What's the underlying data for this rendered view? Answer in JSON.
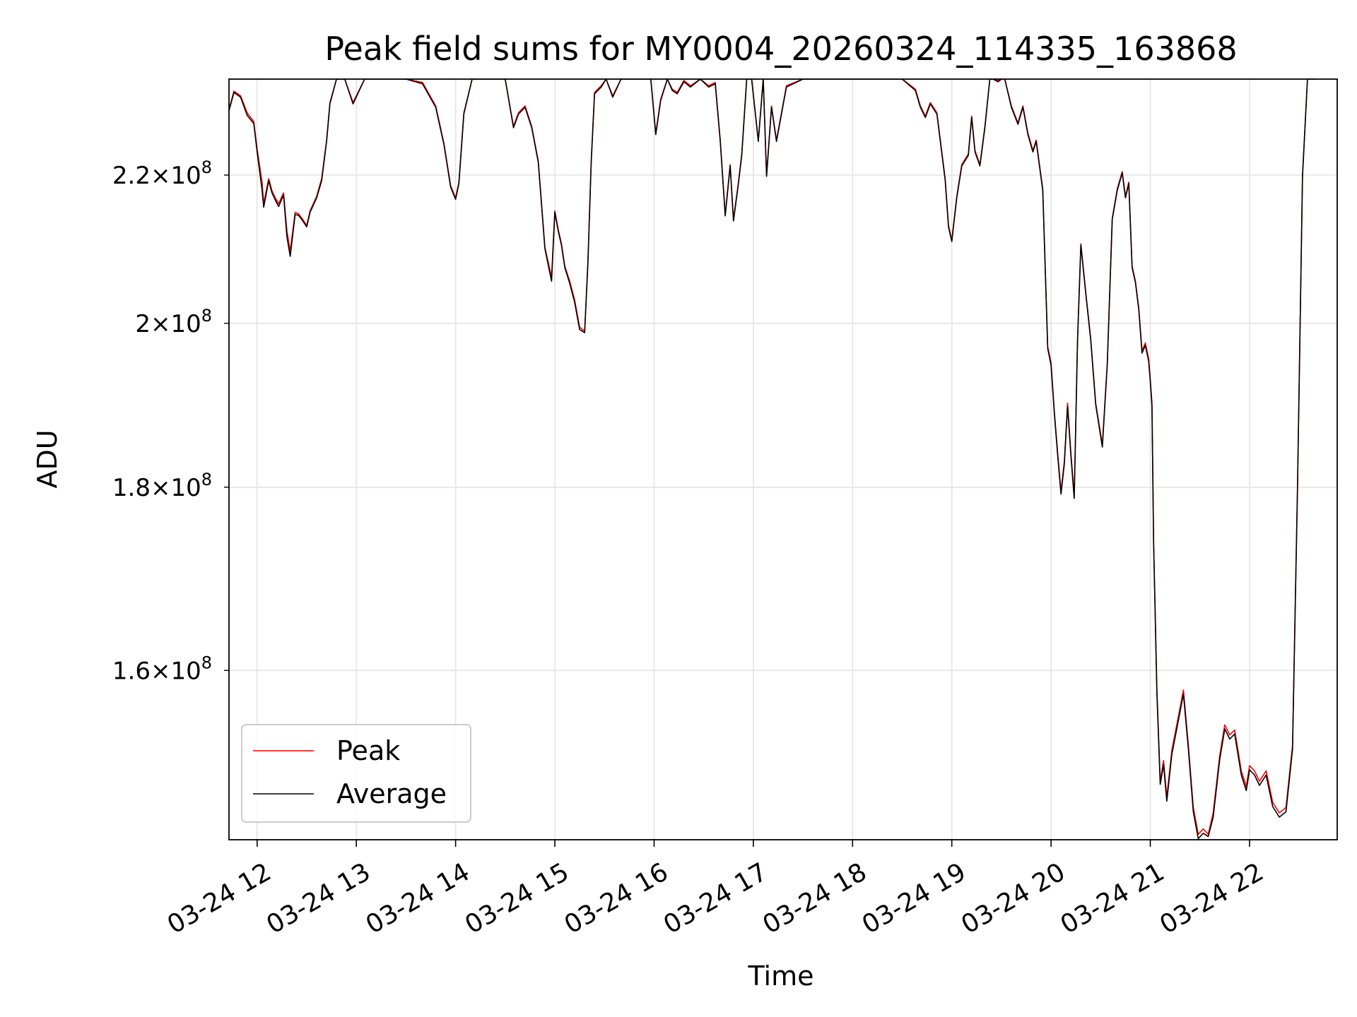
{
  "chart_data": {
    "type": "line",
    "title": "Peak field sums for MY0004_20260324_114335_163868",
    "xlabel": "Time",
    "ylabel": "ADU",
    "y_scale": "log",
    "xlim": [
      "2026-03-24 11:43",
      "2026-03-24 22:53"
    ],
    "ylim": [
      143500000,
      234000000
    ],
    "grid": true,
    "legend_position": "lower-left",
    "x_ticks": [
      {
        "value": "2026-03-24 12:00",
        "label": "03-24 12"
      },
      {
        "value": "2026-03-24 13:00",
        "label": "03-24 13"
      },
      {
        "value": "2026-03-24 14:00",
        "label": "03-24 14"
      },
      {
        "value": "2026-03-24 15:00",
        "label": "03-24 15"
      },
      {
        "value": "2026-03-24 16:00",
        "label": "03-24 16"
      },
      {
        "value": "2026-03-24 17:00",
        "label": "03-24 17"
      },
      {
        "value": "2026-03-24 18:00",
        "label": "03-24 18"
      },
      {
        "value": "2026-03-24 19:00",
        "label": "03-24 19"
      },
      {
        "value": "2026-03-24 20:00",
        "label": "03-24 20"
      },
      {
        "value": "2026-03-24 21:00",
        "label": "03-24 21"
      },
      {
        "value": "2026-03-24 22:00",
        "label": "03-24 22"
      }
    ],
    "y_ticks": [
      {
        "value": 160000000,
        "mantissa": "1.6",
        "exponent": "8"
      },
      {
        "value": 180000000,
        "mantissa": "1.8",
        "exponent": "8"
      },
      {
        "value": 200000000,
        "mantissa": "2",
        "exponent": "8"
      },
      {
        "value": 220000000,
        "mantissa": "2.2",
        "exponent": "8"
      }
    ],
    "colors": {
      "Peak": "#ff0000",
      "Average": "#000000",
      "grid": "#e6e6e6"
    },
    "x": [
      "2026-03-24 11:43",
      "2026-03-24 11:46",
      "2026-03-24 11:50",
      "2026-03-24 11:54",
      "2026-03-24 11:58",
      "2026-03-24 12:00",
      "2026-03-24 12:03",
      "2026-03-24 12:04",
      "2026-03-24 12:07",
      "2026-03-24 12:09",
      "2026-03-24 12:11",
      "2026-03-24 12:13",
      "2026-03-24 12:16",
      "2026-03-24 12:18",
      "2026-03-24 12:20",
      "2026-03-24 12:23",
      "2026-03-24 12:25",
      "2026-03-24 12:27",
      "2026-03-24 12:30",
      "2026-03-24 12:32",
      "2026-03-24 12:36",
      "2026-03-24 12:39",
      "2026-03-24 12:42",
      "2026-03-24 12:44",
      "2026-03-24 12:48",
      "2026-03-24 12:53",
      "2026-03-24 12:58",
      "2026-03-24 13:05",
      "2026-03-24 13:15",
      "2026-03-24 13:30",
      "2026-03-24 13:40",
      "2026-03-24 13:48",
      "2026-03-24 13:53",
      "2026-03-24 13:57",
      "2026-03-24 14:00",
      "2026-03-24 14:02",
      "2026-03-24 14:05",
      "2026-03-24 14:10",
      "2026-03-24 14:20",
      "2026-03-24 14:30",
      "2026-03-24 14:35",
      "2026-03-24 14:38",
      "2026-03-24 14:42",
      "2026-03-24 14:46",
      "2026-03-24 14:50",
      "2026-03-24 14:54",
      "2026-03-24 14:58",
      "2026-03-24 15:00",
      "2026-03-24 15:02",
      "2026-03-24 15:04",
      "2026-03-24 15:06",
      "2026-03-24 15:09",
      "2026-03-24 15:12",
      "2026-03-24 15:15",
      "2026-03-24 15:18",
      "2026-03-24 15:20",
      "2026-03-24 15:22",
      "2026-03-24 15:24",
      "2026-03-24 15:28",
      "2026-03-24 15:31",
      "2026-03-24 15:35",
      "2026-03-24 15:40",
      "2026-03-24 15:50",
      "2026-03-24 15:55",
      "2026-03-24 15:58",
      "2026-03-24 16:01",
      "2026-03-24 16:04",
      "2026-03-24 16:08",
      "2026-03-24 16:11",
      "2026-03-24 16:14",
      "2026-03-24 16:18",
      "2026-03-24 16:22",
      "2026-03-24 16:28",
      "2026-03-24 16:33",
      "2026-03-24 16:37",
      "2026-03-24 16:40",
      "2026-03-24 16:43",
      "2026-03-24 16:46",
      "2026-03-24 16:48",
      "2026-03-24 16:51",
      "2026-03-24 16:53",
      "2026-03-24 16:56",
      "2026-03-24 16:59",
      "2026-03-24 17:03",
      "2026-03-24 17:06",
      "2026-03-24 17:08",
      "2026-03-24 17:11",
      "2026-03-24 17:14",
      "2026-03-24 17:17",
      "2026-03-24 17:20",
      "2026-03-24 17:30",
      "2026-03-24 18:00",
      "2026-03-24 18:30",
      "2026-03-24 18:38",
      "2026-03-24 18:41",
      "2026-03-24 18:44",
      "2026-03-24 18:47",
      "2026-03-24 18:51",
      "2026-03-24 18:56",
      "2026-03-24 18:58",
      "2026-03-24 19:00",
      "2026-03-24 19:03",
      "2026-03-24 19:06",
      "2026-03-24 19:10",
      "2026-03-24 19:12",
      "2026-03-24 19:14",
      "2026-03-24 19:17",
      "2026-03-24 19:20",
      "2026-03-24 19:23",
      "2026-03-24 19:25",
      "2026-03-24 19:28",
      "2026-03-24 19:30",
      "2026-03-24 19:32",
      "2026-03-24 19:36",
      "2026-03-24 19:40",
      "2026-03-24 19:43",
      "2026-03-24 19:46",
      "2026-03-24 19:49",
      "2026-03-24 19:51",
      "2026-03-24 19:55",
      "2026-03-24 19:58",
      "2026-03-24 20:00",
      "2026-03-24 20:02",
      "2026-03-24 20:04",
      "2026-03-24 20:06",
      "2026-03-24 20:08",
      "2026-03-24 20:10",
      "2026-03-24 20:12",
      "2026-03-24 20:14",
      "2026-03-24 20:16",
      "2026-03-24 20:18",
      "2026-03-24 20:21",
      "2026-03-24 20:24",
      "2026-03-24 20:27",
      "2026-03-24 20:31",
      "2026-03-24 20:34",
      "2026-03-24 20:37",
      "2026-03-24 20:40",
      "2026-03-24 20:43",
      "2026-03-24 20:45",
      "2026-03-24 20:47",
      "2026-03-24 20:49",
      "2026-03-24 20:51",
      "2026-03-24 20:53",
      "2026-03-24 20:55",
      "2026-03-24 20:57",
      "2026-03-24 20:59",
      "2026-03-24 21:00",
      "2026-03-24 21:01",
      "2026-03-24 21:02",
      "2026-03-24 21:04",
      "2026-03-24 21:06",
      "2026-03-24 21:08",
      "2026-03-24 21:10",
      "2026-03-24 21:13",
      "2026-03-24 21:16",
      "2026-03-24 21:20",
      "2026-03-24 21:23",
      "2026-03-24 21:26",
      "2026-03-24 21:29",
      "2026-03-24 21:32",
      "2026-03-24 21:35",
      "2026-03-24 21:38",
      "2026-03-24 21:42",
      "2026-03-24 21:45",
      "2026-03-24 21:48",
      "2026-03-24 21:51",
      "2026-03-24 21:55",
      "2026-03-24 21:58",
      "2026-03-24 22:00",
      "2026-03-24 22:03",
      "2026-03-24 22:06",
      "2026-03-24 22:10",
      "2026-03-24 22:14",
      "2026-03-24 22:18",
      "2026-03-24 22:22",
      "2026-03-24 22:26",
      "2026-03-24 22:29",
      "2026-03-24 22:32",
      "2026-03-24 22:35",
      "2026-03-24 22:40"
    ],
    "series": [
      {
        "name": "Peak",
        "values": [
          229500000,
          232200000,
          231500000,
          229000000,
          227700000,
          223700000,
          219000000,
          216000000,
          219500000,
          217800000,
          216800000,
          216000000,
          217500000,
          212300000,
          209500000,
          214800000,
          214600000,
          214000000,
          213000000,
          215000000,
          217000000,
          219500000,
          225000000,
          230500000,
          234000000,
          234000000,
          230500000,
          234000000,
          234000000,
          234000000,
          233500000,
          230000000,
          224500000,
          218500000,
          216800000,
          219000000,
          229000000,
          234000000,
          234000000,
          234000000,
          227000000,
          229000000,
          230000000,
          227000000,
          222000000,
          210000000,
          206000000,
          215000000,
          212500000,
          210500000,
          207500000,
          205500000,
          203000000,
          199500000,
          199000000,
          208000000,
          222000000,
          232000000,
          233000000,
          234000000,
          231500000,
          234000000,
          234000000,
          234000000,
          234000000,
          226000000,
          231000000,
          234000000,
          232500000,
          232000000,
          233800000,
          233000000,
          234000000,
          233000000,
          233500000,
          225000000,
          214500000,
          221500000,
          213800000,
          219000000,
          223000000,
          234000000,
          234000000,
          225000000,
          234000000,
          220000000,
          230000000,
          225000000,
          229000000,
          233000000,
          234000000,
          234000000,
          234000000,
          232500000,
          230000000,
          228500000,
          230500000,
          229000000,
          219500000,
          213000000,
          211000000,
          217000000,
          221500000,
          223000000,
          228500000,
          223500000,
          221500000,
          227000000,
          234000000,
          234000000,
          233800000,
          234000000,
          234000000,
          230000000,
          227500000,
          230000000,
          226000000,
          223500000,
          225000000,
          218000000,
          197000000,
          195000000,
          189000000,
          184000000,
          179500000,
          183000000,
          190000000,
          184000000,
          179000000,
          198000000,
          210500000,
          204000000,
          198000000,
          190000000,
          185000000,
          195000000,
          214000000,
          218000000,
          220500000,
          217000000,
          219000000,
          207500000,
          205500000,
          202000000,
          196500000,
          197500000,
          195500000,
          193000000,
          190000000,
          174000000,
          158000000,
          149000000,
          151000000,
          147500000,
          152000000,
          154500000,
          158000000,
          152500000,
          146500000,
          144000000,
          144500000,
          144000000,
          146000000,
          151500000,
          154500000,
          153500000,
          154000000,
          150000000,
          148500000,
          150500000,
          150000000,
          149000000,
          150000000,
          147000000,
          146000000,
          146500000,
          152500000,
          180000000,
          220000000,
          234000000,
          234000000
        ]
      },
      {
        "name": "Average",
        "values": [
          229300000,
          232000000,
          231300000,
          228600000,
          227400000,
          223300000,
          217900000,
          215500000,
          219200000,
          217500000,
          216500000,
          215600000,
          217200000,
          211500000,
          208800000,
          214500000,
          214400000,
          213800000,
          212800000,
          214800000,
          216800000,
          219200000,
          224800000,
          230300000,
          234000000,
          234000000,
          230300000,
          234000000,
          234000000,
          234000000,
          233300000,
          229800000,
          224300000,
          218300000,
          216600000,
          218800000,
          228800000,
          234000000,
          234000000,
          234000000,
          226800000,
          228800000,
          229800000,
          226800000,
          221800000,
          209800000,
          205500000,
          214800000,
          212300000,
          210300000,
          207300000,
          205200000,
          202700000,
          199200000,
          198800000,
          207800000,
          221800000,
          231800000,
          232800000,
          234000000,
          231300000,
          234000000,
          234000000,
          234000000,
          234000000,
          225800000,
          230800000,
          234000000,
          232300000,
          231800000,
          233600000,
          232800000,
          234000000,
          232800000,
          233300000,
          224800000,
          214300000,
          221300000,
          213600000,
          218800000,
          222800000,
          234000000,
          234000000,
          224800000,
          234000000,
          219800000,
          229800000,
          224800000,
          228800000,
          232800000,
          234000000,
          234000000,
          234000000,
          232300000,
          229800000,
          228300000,
          230300000,
          228800000,
          219300000,
          212800000,
          210800000,
          216800000,
          221300000,
          222800000,
          228300000,
          223300000,
          221300000,
          226800000,
          234000000,
          234000000,
          233600000,
          234000000,
          234000000,
          229800000,
          227300000,
          229800000,
          225800000,
          223300000,
          224800000,
          217800000,
          196800000,
          194700000,
          188700000,
          183700000,
          179200000,
          182700000,
          189600000,
          183700000,
          178700000,
          197800000,
          210300000,
          203800000,
          197800000,
          189800000,
          184700000,
          194800000,
          213800000,
          217800000,
          220300000,
          216800000,
          218800000,
          207300000,
          205300000,
          201800000,
          196200000,
          197200000,
          195200000,
          192700000,
          189600000,
          173700000,
          157600000,
          148700000,
          150600000,
          147100000,
          151600000,
          154100000,
          157600000,
          152100000,
          146100000,
          143600000,
          144100000,
          143800000,
          145600000,
          151100000,
          154100000,
          153100000,
          153600000,
          149600000,
          148100000,
          150100000,
          149600000,
          148600000,
          149600000,
          146600000,
          145600000,
          146100000,
          152100000,
          179800000,
          219800000,
          234000000,
          234000000
        ]
      }
    ]
  }
}
